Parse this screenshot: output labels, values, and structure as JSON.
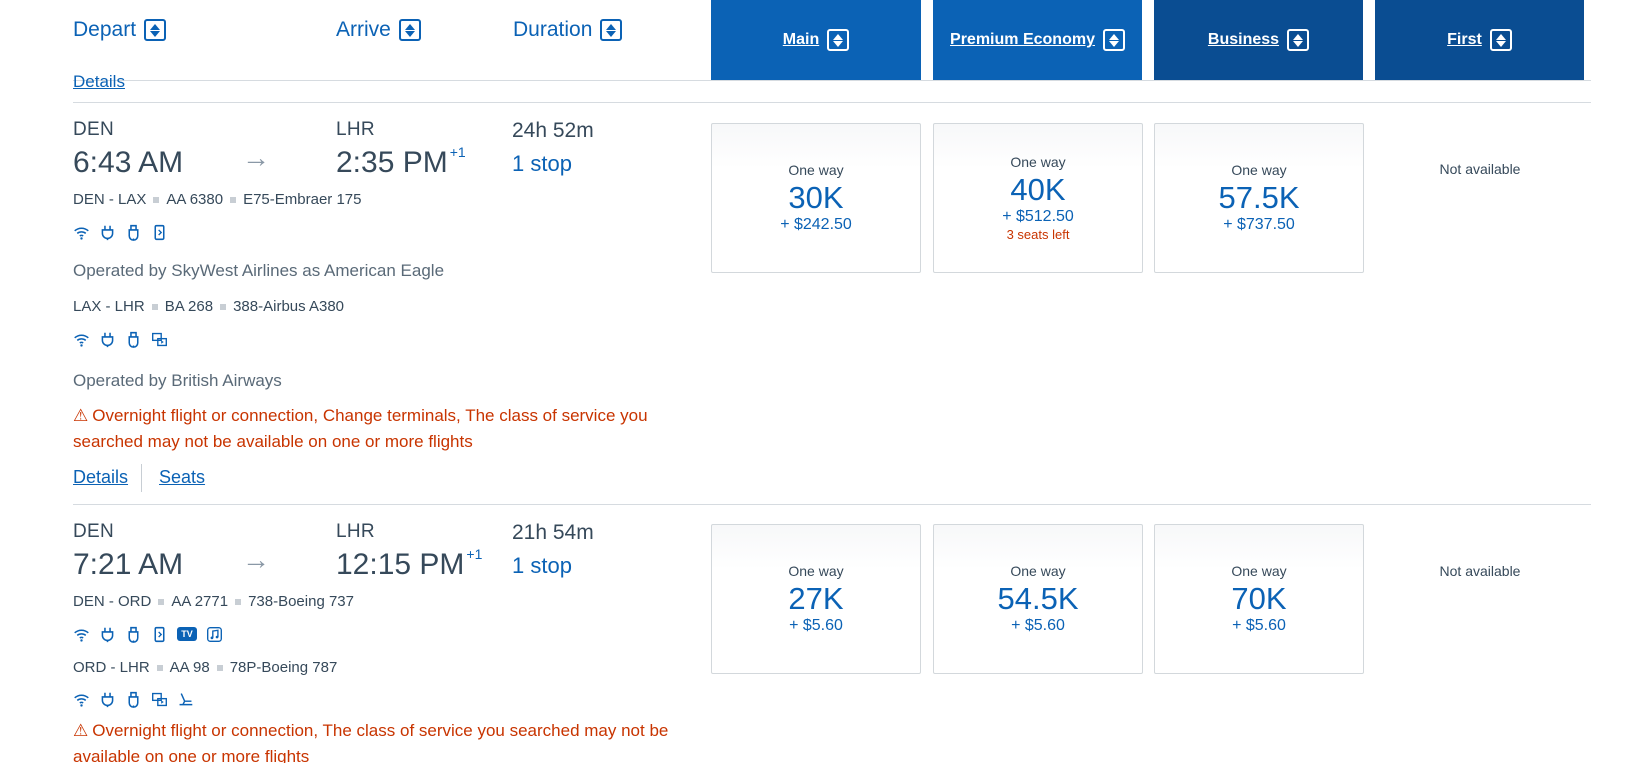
{
  "header": {
    "depart": "Depart",
    "arrive": "Arrive",
    "duration": "Duration",
    "cabins": [
      "Main",
      "Premium Economy",
      "Business",
      "First"
    ]
  },
  "top_details": "Details",
  "flights": [
    {
      "origin": "DEN",
      "depart_time": "6:43 AM",
      "destination": "LHR",
      "arrive_time": "2:35 PM",
      "day_offset": "+1",
      "duration": "24h 52m",
      "stops": "1 stop",
      "segments": [
        {
          "route": "DEN - LAX",
          "flight": "AA 6380",
          "aircraft": "E75-Embraer 175",
          "amenities": [
            "wifi-icon",
            "power-icon",
            "usb-icon",
            "phone-icon"
          ],
          "operated": "Operated by SkyWest Airlines as American Eagle"
        },
        {
          "route": "LAX - LHR",
          "flight": "BA 268",
          "aircraft": "388-Airbus A380",
          "amenities": [
            "wifi-icon",
            "power-icon",
            "usb-icon",
            "entertainment-icon"
          ],
          "operated": "Operated by British Airways"
        }
      ],
      "warning": "Overnight flight or connection, Change terminals, The class of service you searched may not be available on one or more flights",
      "details": "Details",
      "seats": "Seats",
      "fares": [
        {
          "label": "One way",
          "miles": "30K",
          "tax": "+ $242.50",
          "seats_left": ""
        },
        {
          "label": "One way",
          "miles": "40K",
          "tax": "+ $512.50",
          "seats_left": "3 seats left"
        },
        {
          "label": "One way",
          "miles": "57.5K",
          "tax": "+ $737.50",
          "seats_left": ""
        }
      ],
      "first": "Not available"
    },
    {
      "origin": "DEN",
      "depart_time": "7:21 AM",
      "destination": "LHR",
      "arrive_time": "12:15 PM",
      "day_offset": "+1",
      "duration": "21h 54m",
      "stops": "1 stop",
      "segments": [
        {
          "route": "DEN - ORD",
          "flight": "AA 2771",
          "aircraft": "738-Boeing 737",
          "amenities": [
            "wifi-icon",
            "power-icon",
            "usb-icon",
            "phone-icon",
            "tv-icon",
            "music-icon"
          ],
          "tv_label": "TV"
        },
        {
          "route": "ORD - LHR",
          "flight": "AA 98",
          "aircraft": "78P-Boeing 787",
          "amenities": [
            "wifi-icon",
            "power-icon",
            "usb-icon",
            "entertainment-icon",
            "lie-flat-seat-icon"
          ]
        }
      ],
      "warning": "Overnight flight or connection, The class of service you searched may not be available on one or more flights",
      "fares": [
        {
          "label": "One way",
          "miles": "27K",
          "tax": "+ $5.60"
        },
        {
          "label": "One way",
          "miles": "54.5K",
          "tax": "+ $5.60"
        },
        {
          "label": "One way",
          "miles": "70K",
          "tax": "+ $5.60"
        }
      ],
      "first": "Not available"
    }
  ],
  "colors": {
    "accent": "#0b62b5",
    "header_main": "#0b62b5",
    "header_business": "#0a4d92",
    "warning": "#c83400"
  }
}
